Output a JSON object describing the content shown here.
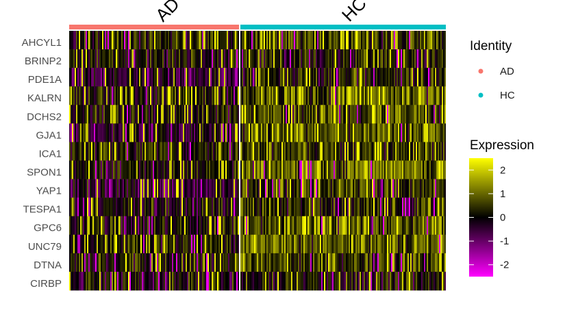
{
  "chart_data": {
    "type": "heatmap",
    "genes": [
      "AHCYL1",
      "BRINP2",
      "PDE1A",
      "KALRN",
      "DCHS2",
      "GJA1",
      "ICA1",
      "SPON1",
      "YAP1",
      "TESPA1",
      "GPC6",
      "UNC79",
      "DTNA",
      "CIRBP"
    ],
    "groups": [
      {
        "name": "AD",
        "color": "#F8766D"
      },
      {
        "name": "HC",
        "color": "#00BFC4"
      }
    ],
    "identity_legend": {
      "title": "Identity",
      "items": [
        "AD",
        "HC"
      ]
    },
    "expression_legend": {
      "title": "Expression",
      "ticks": [
        2,
        1,
        0,
        -1,
        -2
      ],
      "tick_labels": [
        "2",
        "1",
        "0",
        "-1",
        "-2"
      ],
      "range": [
        -2.5,
        2.5
      ],
      "colors": {
        "low": "#FF00FF",
        "mid": "#000000",
        "high": "#FFFF00"
      }
    },
    "gene_mean_expression": {
      "AD": [
        0.3,
        0.1,
        -0.6,
        0.2,
        0.0,
        -0.3,
        0.3,
        0.1,
        -0.4,
        0.0,
        0.0,
        0.2,
        0.2,
        0.0
      ],
      "HC": [
        0.6,
        0.2,
        0.3,
        0.9,
        0.7,
        0.7,
        0.5,
        1.0,
        0.5,
        0.3,
        0.8,
        0.9,
        0.6,
        0.1
      ]
    }
  }
}
